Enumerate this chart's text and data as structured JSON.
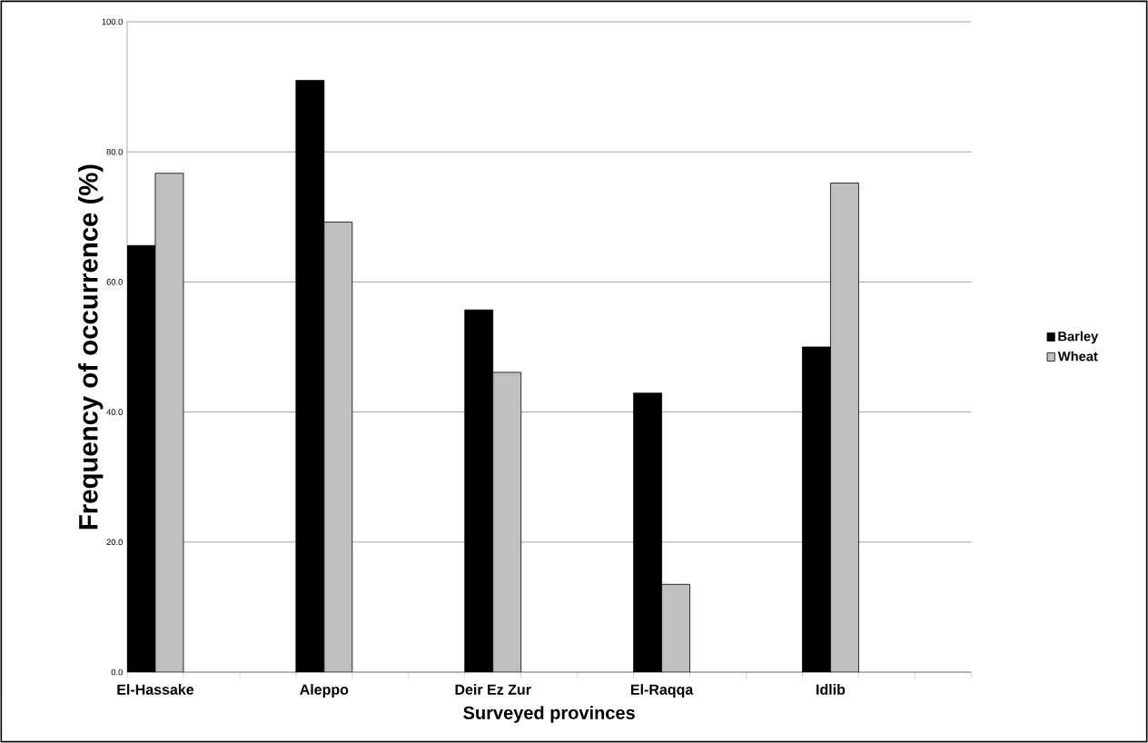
{
  "chart_data": {
    "type": "bar",
    "xlabel": "Surveyed provinces",
    "ylabel": "Frequency  of  occurrence (%)",
    "categories": [
      "El-Hassake",
      "Aleppo",
      "Deir Ez Zur",
      "El-Raqqa",
      "Idlib"
    ],
    "series": [
      {
        "name": "Barley",
        "color": "#000000",
        "values": [
          65.6,
          91.0,
          55.7,
          42.9,
          50.0
        ]
      },
      {
        "name": "Wheat",
        "color": "#c0c0c0",
        "values": [
          76.7,
          69.2,
          46.1,
          13.5,
          75.2
        ]
      }
    ],
    "ylim": [
      0,
      100
    ],
    "yticks": [
      {
        "value": 0,
        "label": "0.0"
      },
      {
        "value": 20,
        "label": "20.0"
      },
      {
        "value": 40,
        "label": "40.0"
      },
      {
        "value": 60,
        "label": "60.0"
      },
      {
        "value": 80,
        "label": "80.0"
      },
      {
        "value": 100,
        "label": "100.0"
      }
    ],
    "grid": "y",
    "legend": "right"
  }
}
